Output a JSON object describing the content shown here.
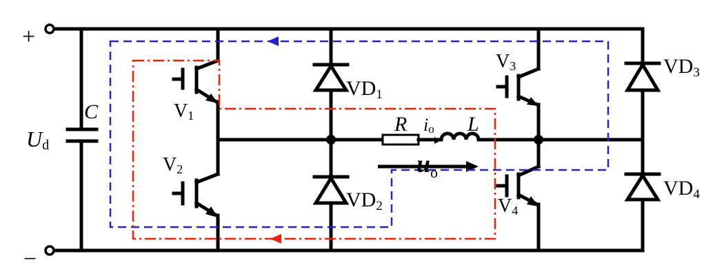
{
  "diagram": {
    "terminals": {
      "positive": "+",
      "negative": "−"
    },
    "labels": {
      "ud_main": "U",
      "ud_sub": "d",
      "capacitor": "C",
      "v1_main": "V",
      "v1_sub": "1",
      "v2_main": "V",
      "v2_sub": "2",
      "v3_main": "V",
      "v3_sub": "3",
      "v4_main": "V",
      "v4_sub": "4",
      "vd1_main": "VD",
      "vd1_sub": "1",
      "vd2_main": "VD",
      "vd2_sub": "2",
      "vd3_main": "VD",
      "vd3_sub": "3",
      "vd4_main": "VD",
      "vd4_sub": "4",
      "resistor": "R",
      "inductor": "L",
      "io_main": "i",
      "io_sub": "o",
      "uo_main": "u",
      "uo_sub": "o"
    },
    "colors": {
      "circuit": "#000000",
      "path_blue": "#2222cc",
      "path_red": "#ee2200",
      "load_current_arrow": "#000000"
    }
  }
}
